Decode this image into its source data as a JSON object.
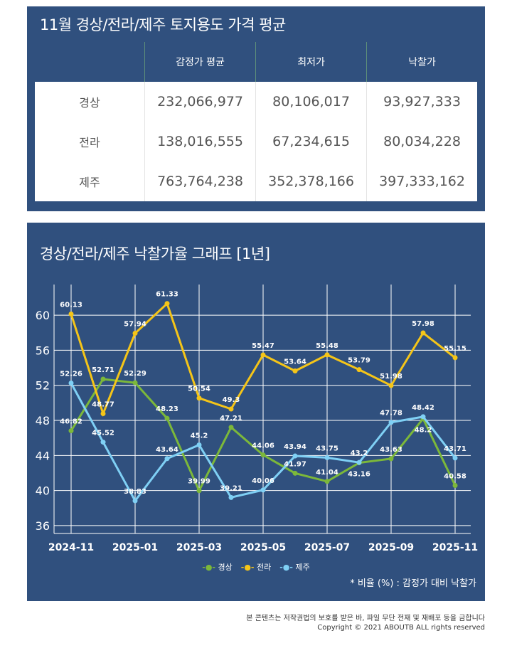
{
  "table": {
    "title": "11월 경상/전라/제주 토지용도 가격 평균",
    "headers": [
      "",
      "감정가 평균",
      "최저가",
      "낙찰가"
    ],
    "rows": [
      [
        "경상",
        "232,066,977",
        "80,106,017",
        "93,927,333"
      ],
      [
        "전라",
        "138,016,555",
        "67,234,615",
        "80,034,228"
      ],
      [
        "제주",
        "763,764,238",
        "352,378,166",
        "397,333,162"
      ]
    ]
  },
  "chart_data": {
    "type": "line",
    "title": "경상/전라/제주 낙찰가율 그래프 [1년]",
    "x": [
      "2024-11",
      "2024-12",
      "2025-01",
      "2025-02",
      "2025-03",
      "2025-04",
      "2025-05",
      "2025-06",
      "2025-07",
      "2025-08",
      "2025-09",
      "2025-10",
      "2025-11"
    ],
    "xticks": [
      "2024-11",
      "2025-01",
      "2025-03",
      "2025-05",
      "2025-07",
      "2025-09",
      "2025-11"
    ],
    "yticks": [
      36,
      40,
      44,
      48,
      52,
      56,
      60
    ],
    "ylim": [
      35.1,
      63.5
    ],
    "series": [
      {
        "name": "경상",
        "color": "#7cb83a",
        "values": [
          46.82,
          52.71,
          52.29,
          48.23,
          39.99,
          47.21,
          44.06,
          41.97,
          41.04,
          43.16,
          43.63,
          48.2,
          40.58
        ]
      },
      {
        "name": "전라",
        "color": "#f5c518",
        "values": [
          60.13,
          48.77,
          57.94,
          61.33,
          50.54,
          49.3,
          55.47,
          53.64,
          55.48,
          53.79,
          51.98,
          57.98,
          55.15
        ]
      },
      {
        "name": "제주",
        "color": "#7fd0f5",
        "values": [
          52.26,
          45.52,
          38.83,
          43.64,
          45.2,
          39.21,
          40.06,
          43.94,
          43.75,
          43.2,
          47.78,
          48.42,
          43.71
        ]
      }
    ],
    "note": "* 비율 (%) : 감정가 대비 낙찰가"
  },
  "footer": {
    "line1": "본 콘텐츠는 저작권법의 보호를 받은 바, 파일 무단 전재 및 재배포 등을 금합니다",
    "line2": "Copyright © 2021 ABOUTB ALL rights reserved"
  }
}
